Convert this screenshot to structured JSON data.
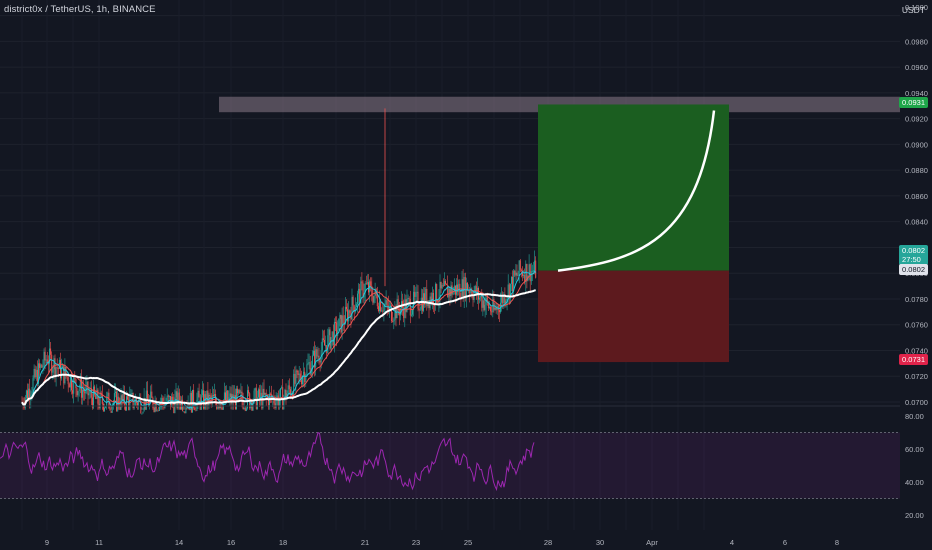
{
  "header": {
    "symbol_title": "district0x / TetherUS, 1h, BINANCE",
    "currency": "USDT"
  },
  "price_axis": {
    "partial_top": "0.1000",
    "ticks": [
      "0.0980",
      "0.0960",
      "0.0940",
      "0.0920",
      "0.0900",
      "0.0880",
      "0.0860",
      "0.0840",
      "0.0820",
      "0.0800",
      "0.0780",
      "0.0760",
      "0.0740",
      "0.0720",
      "0.0700"
    ]
  },
  "price_tags": {
    "target": "0.0931",
    "current": "0.0802",
    "countdown": "27:50",
    "entry": "0.0802",
    "stop": "0.0731"
  },
  "rsi_axis": {
    "ticks": [
      "80.00",
      "60.00",
      "40.00",
      "20.00"
    ]
  },
  "time_axis": {
    "labels": [
      "9",
      "11",
      "14",
      "16",
      "18",
      "21",
      "23",
      "25",
      "28",
      "30",
      "Apr",
      "4",
      "6",
      "8"
    ]
  },
  "colors": {
    "background": "#131722",
    "up": "#26a69a",
    "down": "#ef5350",
    "rsi": "#9c27b0",
    "target_zone": "#1b5e20",
    "stop_zone": "#5d1a1e",
    "resistance_band": "#8a7a88"
  },
  "chart_data": {
    "type": "candlestick",
    "symbol": "district0x / TetherUS",
    "timeframe": "1h",
    "exchange": "BINANCE",
    "y_axis_unit": "USDT",
    "ylim": [
      0.0695,
      0.1005
    ],
    "x_axis_labels": [
      "9",
      "11",
      "14",
      "16",
      "18",
      "21",
      "23",
      "25",
      "28",
      "30",
      "Apr",
      "4",
      "6",
      "8"
    ],
    "price_path_anchors": [
      {
        "date": "Mar 8",
        "price": 0.07
      },
      {
        "date": "Mar 9",
        "price": 0.0735
      },
      {
        "date": "Mar 10",
        "price": 0.0715
      },
      {
        "date": "Mar 11",
        "price": 0.07
      },
      {
        "date": "Mar 14",
        "price": 0.07
      },
      {
        "date": "Mar 18",
        "price": 0.0703
      },
      {
        "date": "Mar 20",
        "price": 0.0755
      },
      {
        "date": "Mar 21",
        "price": 0.079
      },
      {
        "date": "Mar 22",
        "price": 0.077
      },
      {
        "date": "Mar 24",
        "price": 0.0785
      },
      {
        "date": "Mar 25",
        "price": 0.079
      },
      {
        "date": "Mar 26",
        "price": 0.077
      },
      {
        "date": "Mar 27",
        "price": 0.0802
      }
    ],
    "spike_high": {
      "date": "Mar 21",
      "price": 0.0928
    },
    "resistance_band": {
      "from_date": "Mar 15",
      "low": 0.0925,
      "high": 0.0937
    },
    "long_position": {
      "from_date": "Mar 28",
      "to_date": "Apr 3",
      "entry": 0.0802,
      "target": 0.0931,
      "stop": 0.0731
    },
    "moving_averages": [
      {
        "color": "#ef5350",
        "end_value": 0.079
      },
      {
        "color": "#ffffff",
        "end_value": 0.078
      }
    ],
    "rsi": {
      "ylim": [
        10,
        90
      ],
      "upper_band": 70,
      "lower_band": 30,
      "range": [
        30,
        78
      ]
    }
  }
}
